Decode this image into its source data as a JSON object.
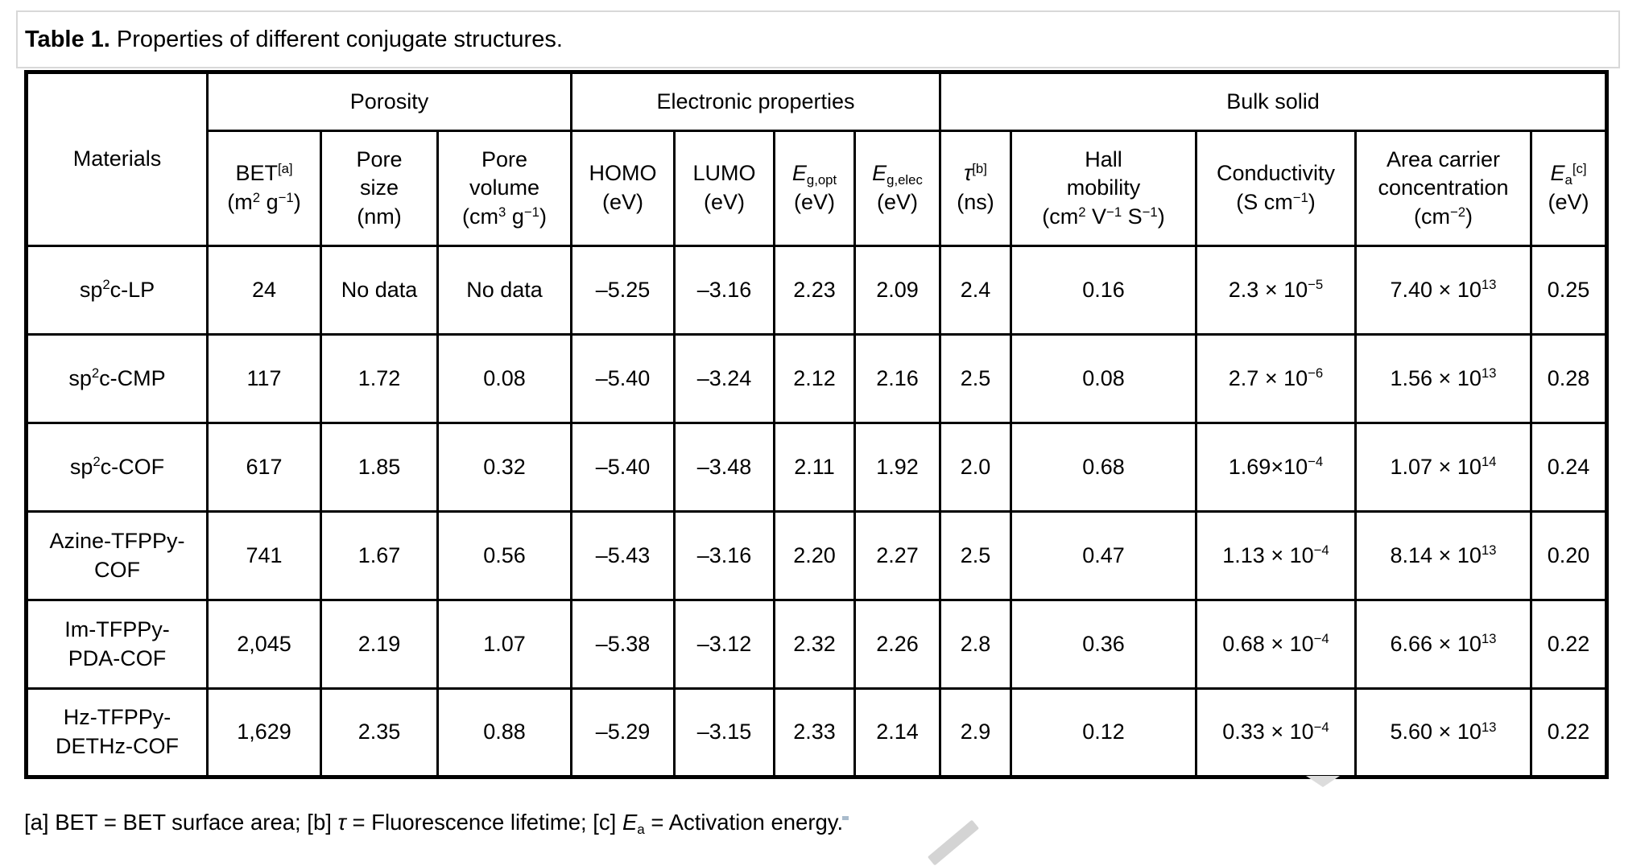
{
  "page": {
    "title_bold": "Table 1.",
    "title_rest": " Properties of different conjugate structures.",
    "footnote": "[a] BET = BET surface area; [b] *τ* = Fluorescence lifetime; [c] *E*_{a} = Activation energy."
  },
  "colors": {
    "table_border": "#000000",
    "title_border": "#d8d8d8",
    "watermark_gray": "#cccccc"
  },
  "decorations": {
    "watermark_triangle_icon": "small gray down-triangle under table bottom border",
    "watermark_slash_icon": "faint gray diagonal pen stroke at bottom edge"
  },
  "table": {
    "group_header": {
      "materials": "Materials",
      "porosity": "Porosity",
      "electronic": "Electronic properties",
      "bulk": "Bulk solid"
    },
    "columns": {
      "bet": "BET^{[a]}\n(m^{2} g^{−1})",
      "pore_size": "Pore\nsize\n(nm)",
      "pore_volume": "Pore\nvolume\n(cm^{3} g^{−1})",
      "homo": "HOMO\n(eV)",
      "lumo": "LUMO\n(eV)",
      "eg_opt": "*E*_{g,opt}\n(eV)",
      "eg_elec": "*E*_{g,elec}\n(eV)",
      "tau": "*τ*^{[b]}\n(ns)",
      "hall": "Hall\nmobility\n(cm^{2} V^{−1} S^{−1})",
      "conductivity": "Conductivity\n(S cm^{−1})",
      "area": "Area carrier\nconcentration\n(cm^{−2})",
      "ea": "*E*_{a}^{[c]}\n(eV)"
    },
    "rows": [
      {
        "material": "sp^{2}c-LP",
        "values": [
          "24",
          "No data",
          "No data",
          "–5.25",
          "–3.16",
          "2.23",
          "2.09",
          "2.4",
          "0.16",
          "2.3 × 10^{−5}",
          "7.40 × 10^{13}",
          "0.25"
        ]
      },
      {
        "material": "sp^{2}c-CMP",
        "values": [
          "117",
          "1.72",
          "0.08",
          "–5.40",
          "–3.24",
          "2.12",
          "2.16",
          "2.5",
          "0.08",
          "2.7 × 10^{−6}",
          "1.56 × 10^{13}",
          "0.28"
        ]
      },
      {
        "material": "sp^{2}c-COF",
        "values": [
          "617",
          "1.85",
          "0.32",
          "–5.40",
          "–3.48",
          "2.11",
          "1.92",
          "2.0",
          "0.68",
          "1.69×10^{−4}",
          "1.07 × 10^{14}",
          "0.24"
        ]
      },
      {
        "material": "Azine-TFPPy-\nCOF",
        "values": [
          "741",
          "1.67",
          "0.56",
          "–5.43",
          "–3.16",
          "2.20",
          "2.27",
          "2.5",
          "0.47",
          "1.13 × 10^{−4}",
          "8.14 × 10^{13}",
          "0.20"
        ]
      },
      {
        "material": "Im-TFPPy-\nPDA-COF",
        "values": [
          "2,045",
          "2.19",
          "1.07",
          "–5.38",
          "–3.12",
          "2.32",
          "2.26",
          "2.8",
          "0.36",
          "0.68 × 10^{−4}",
          "6.66 × 10^{13}",
          "0.22"
        ]
      },
      {
        "material": "Hz-TFPPy-\nDETHz-COF",
        "values": [
          "1,629",
          "2.35",
          "0.88",
          "–5.29",
          "–3.15",
          "2.33",
          "2.14",
          "2.9",
          "0.12",
          "0.33 × 10^{−4}",
          "5.60 × 10^{13}",
          "0.22"
        ]
      }
    ]
  }
}
